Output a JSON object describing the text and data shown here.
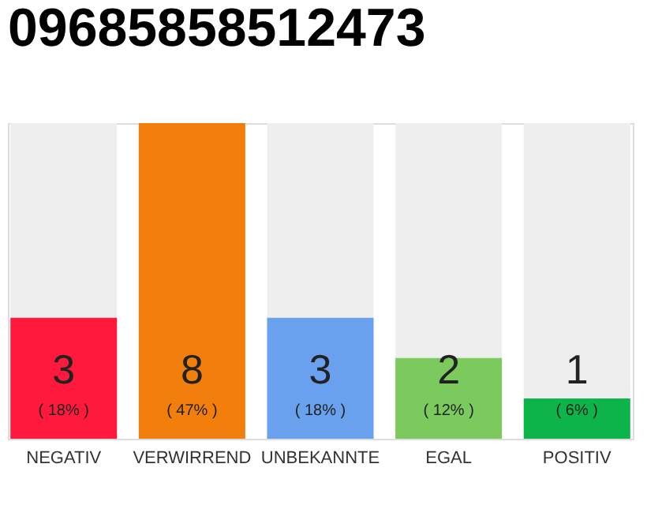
{
  "chart_data": {
    "type": "bar",
    "title": "09685858512473",
    "categories": [
      "NEGATIV",
      "VERWIRREND",
      "UNBEKANNTE",
      "EGAL",
      "POSITIV"
    ],
    "values": [
      18,
      47,
      18,
      12,
      6
    ],
    "colors": [
      "#ff1a3d",
      "#f27f0c",
      "#6aa1ee",
      "#7cca5e",
      "#0cb44a"
    ],
    "value_labels": [
      "( 18% )",
      "( 47% )",
      "( 18% )",
      "( 12% )",
      "( 6% )"
    ],
    "annotations": [
      "3",
      "8",
      "3",
      "2",
      "1"
    ]
  }
}
